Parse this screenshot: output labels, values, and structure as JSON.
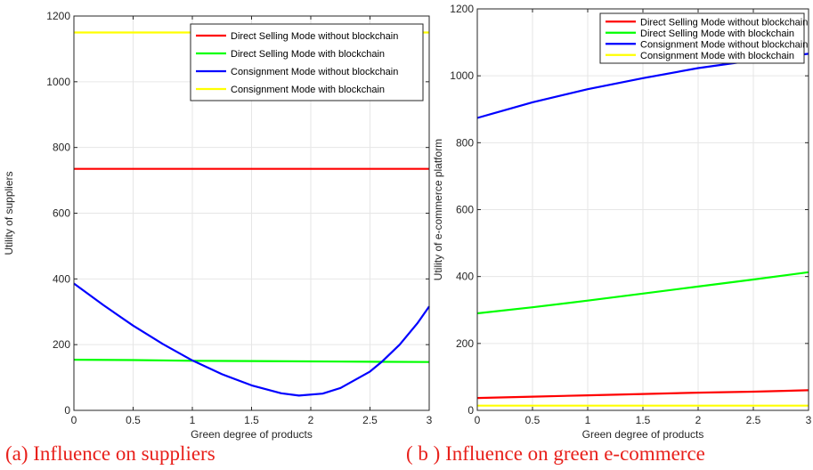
{
  "chart_data": [
    {
      "type": "line",
      "title": "",
      "xlabel": "Green degree of products",
      "ylabel": "Utility of suppliers",
      "xlim": [
        0,
        3
      ],
      "ylim": [
        0,
        1200
      ],
      "xticks": [
        0,
        0.5,
        1,
        1.5,
        2,
        2.5,
        3
      ],
      "yticks": [
        0,
        200,
        400,
        600,
        800,
        1000,
        1200
      ],
      "grid": true,
      "legend_position": "top-right",
      "caption": "(a) Influence on suppliers",
      "series": [
        {
          "name": "Direct Selling Mode without blockchain",
          "color": "#ff0000",
          "x": [
            0,
            0.5,
            1,
            1.5,
            2,
            2.5,
            3
          ],
          "y": [
            735,
            735,
            735,
            735,
            735,
            735,
            735
          ]
        },
        {
          "name": "Direct Selling Mode with blockchain",
          "color": "#00ff00",
          "x": [
            0,
            0.5,
            1,
            1.5,
            2,
            2.5,
            3
          ],
          "y": [
            154,
            153,
            151,
            150,
            149,
            148,
            147
          ]
        },
        {
          "name": "Consignment Mode without blockchain",
          "color": "#0000ff",
          "x": [
            0,
            0.25,
            0.5,
            0.75,
            1,
            1.25,
            1.5,
            1.75,
            1.9,
            2.1,
            2.25,
            2.5,
            2.6,
            2.75,
            2.9,
            3
          ],
          "y": [
            386,
            320,
            258,
            202,
            152,
            110,
            76,
            52,
            45,
            51,
            68,
            118,
            148,
            200,
            265,
            316
          ]
        },
        {
          "name": "Consignment Mode with blockchain",
          "color": "#ffff00",
          "x": [
            0,
            0.5,
            1,
            1.5,
            2,
            2.5,
            3
          ],
          "y": [
            1150,
            1150,
            1150,
            1150,
            1150,
            1150,
            1150
          ]
        }
      ]
    },
    {
      "type": "line",
      "title": "",
      "xlabel": "Green degree of products",
      "ylabel": "Utility of e-commerce platform",
      "xlim": [
        0,
        3
      ],
      "ylim": [
        0,
        1200
      ],
      "xticks": [
        0,
        0.5,
        1,
        1.5,
        2,
        2.5,
        3
      ],
      "yticks": [
        0,
        200,
        400,
        600,
        800,
        1000,
        1200
      ],
      "grid": true,
      "legend_position": "top-right",
      "caption": "( b ) Influence on green e-commerce",
      "series": [
        {
          "name": "Direct Selling Mode without blockchain",
          "color": "#ff0000",
          "x": [
            0,
            0.5,
            1,
            1.5,
            2,
            2.5,
            3
          ],
          "y": [
            37,
            41,
            45,
            49,
            53,
            56,
            60
          ]
        },
        {
          "name": "Direct Selling Mode with blockchain",
          "color": "#00ff00",
          "x": [
            0,
            0.5,
            1,
            1.5,
            2,
            2.5,
            3
          ],
          "y": [
            290,
            308,
            328,
            349,
            370,
            391,
            413
          ]
        },
        {
          "name": "Consignment Mode without blockchain",
          "color": "#0000ff",
          "x": [
            0,
            0.5,
            1,
            1.5,
            2,
            2.5,
            3
          ],
          "y": [
            874,
            921,
            960,
            993,
            1023,
            1046,
            1066
          ]
        },
        {
          "name": "Consignment Mode with blockchain",
          "color": "#ffff00",
          "x": [
            0,
            0.5,
            1,
            1.5,
            2,
            2.5,
            3
          ],
          "y": [
            14,
            14,
            14,
            14,
            14,
            14,
            14
          ]
        }
      ]
    }
  ]
}
